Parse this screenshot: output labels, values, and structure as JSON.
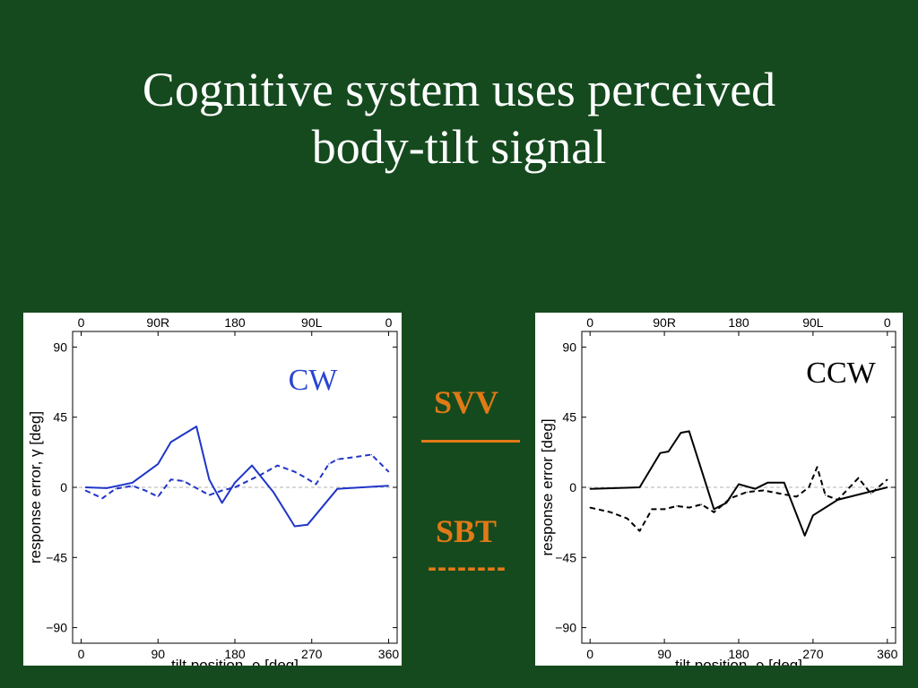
{
  "slide": {
    "title_line1": "Cognitive system uses perceived",
    "title_line2": "body-tilt signal"
  },
  "legend": {
    "svv_label": "SVV",
    "sbt_label": "SBT",
    "sbt_dash": "--------",
    "color": "#e07a17"
  },
  "chart_data": [
    {
      "type": "line",
      "annotation": "CW",
      "annotation_color": "#2a45d0",
      "line_color": "#1f35c8",
      "xlabel": "tilt position, ρ [deg]",
      "ylabel": "response error, γ [deg]",
      "xlim": [
        -10,
        370
      ],
      "ylim": [
        -100,
        100
      ],
      "x_ticks": [
        0,
        90,
        180,
        270,
        360
      ],
      "x_tick_labels": [
        "0",
        "90",
        "180",
        "270",
        "360"
      ],
      "top_tick_labels": [
        "0",
        "90R",
        "180",
        "90L",
        "0"
      ],
      "y_ticks": [
        90,
        45,
        0,
        -45,
        -90
      ],
      "y_tick_labels": [
        "90",
        "45",
        "0",
        "−45",
        "−90"
      ],
      "zero_line": true,
      "series": [
        {
          "style": "solid",
          "x": [
            5,
            30,
            60,
            90,
            105,
            135,
            150,
            165,
            180,
            200,
            225,
            250,
            265,
            300,
            360
          ],
          "y": [
            0,
            -0.5,
            3,
            15,
            29,
            39,
            5,
            -10,
            3,
            14,
            -3,
            -25,
            -24,
            -1,
            1
          ]
        },
        {
          "style": "dashed",
          "x": [
            5,
            25,
            40,
            60,
            75,
            90,
            105,
            120,
            150,
            165,
            180,
            210,
            230,
            250,
            260,
            275,
            290,
            300,
            315,
            340,
            360
          ],
          "y": [
            -2,
            -7,
            -1,
            1,
            -2,
            -6,
            5,
            4,
            -5,
            -2,
            0,
            8,
            14,
            10,
            7,
            2,
            15,
            18,
            19,
            21,
            10
          ]
        }
      ]
    },
    {
      "type": "line",
      "annotation": "CCW",
      "annotation_color": "#000000",
      "line_color": "#000000",
      "xlabel": "tilt position, ρ [deg]",
      "ylabel": "response error [deg]",
      "xlim": [
        -10,
        370
      ],
      "ylim": [
        -100,
        100
      ],
      "x_ticks": [
        0,
        90,
        180,
        270,
        360
      ],
      "x_tick_labels": [
        "0",
        "90",
        "180",
        "270",
        "360"
      ],
      "top_tick_labels": [
        "0",
        "90R",
        "180",
        "90L",
        "0"
      ],
      "y_ticks": [
        90,
        45,
        0,
        -45,
        -90
      ],
      "y_tick_labels": [
        "90",
        "45",
        "0",
        "−45",
        "−90"
      ],
      "zero_line": true,
      "series": [
        {
          "style": "solid",
          "x": [
            0,
            60,
            85,
            95,
            110,
            120,
            150,
            165,
            180,
            200,
            215,
            235,
            260,
            270,
            300,
            360
          ],
          "y": [
            -1,
            0,
            22,
            23,
            35,
            36,
            -14,
            -10,
            2,
            -1,
            3,
            3,
            -31,
            -18,
            -8,
            0
          ]
        },
        {
          "style": "dashed",
          "x": [
            0,
            25,
            45,
            60,
            75,
            90,
            105,
            120,
            135,
            150,
            170,
            190,
            210,
            230,
            250,
            265,
            275,
            285,
            300,
            325,
            340,
            360
          ],
          "y": [
            -13,
            -16,
            -20,
            -28,
            -14,
            -14,
            -12,
            -13,
            -11,
            -16,
            -7,
            -3,
            -2,
            -4,
            -6,
            0,
            13,
            -5,
            -8,
            6,
            -4,
            5
          ]
        }
      ]
    }
  ]
}
